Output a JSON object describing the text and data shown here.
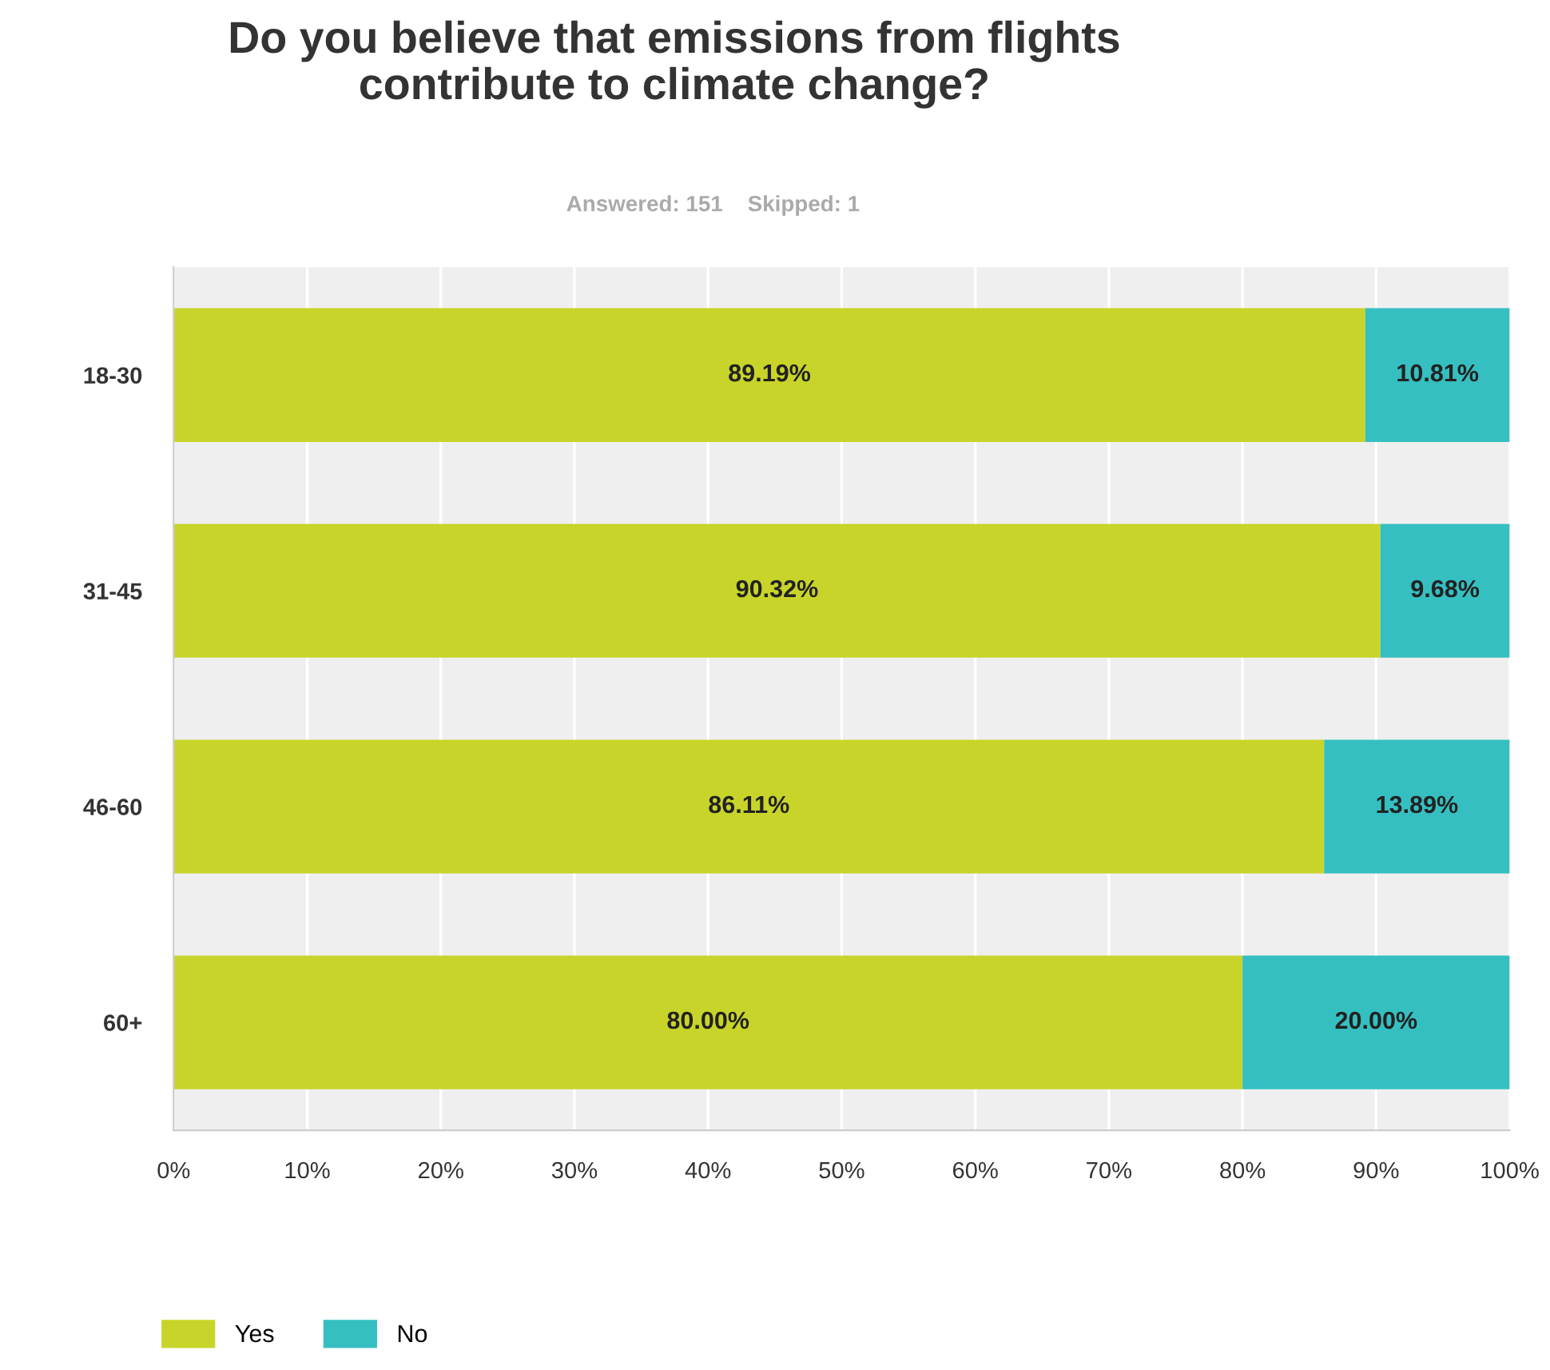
{
  "chart_data": {
    "type": "bar",
    "orientation": "horizontal",
    "stacked": true,
    "title": "Do you believe that emissions from flights\ncontribute to climate change?",
    "subtitle": "Answered: 151    Skipped: 1",
    "categories": [
      "18-30",
      "31-45",
      "46-60",
      "60+"
    ],
    "series": [
      {
        "name": "Yes",
        "color": "#c8d42a",
        "values": [
          89.19,
          90.32,
          86.11,
          80.0
        ],
        "value_labels": [
          "89.19%",
          "90.32%",
          "86.11%",
          "80.00%"
        ]
      },
      {
        "name": "No",
        "color": "#36bfc1",
        "values": [
          10.81,
          9.68,
          13.89,
          20.0
        ],
        "value_labels": [
          "10.81%",
          "9.68%",
          "13.89%",
          "20.00%"
        ]
      }
    ],
    "xlim": [
      0,
      100
    ],
    "xticks": [
      {
        "value": 0,
        "label": "0%"
      },
      {
        "value": 10,
        "label": "10%"
      },
      {
        "value": 20,
        "label": "20%"
      },
      {
        "value": 30,
        "label": "30%"
      },
      {
        "value": 40,
        "label": "40%"
      },
      {
        "value": 50,
        "label": "50%"
      },
      {
        "value": 60,
        "label": "60%"
      },
      {
        "value": 70,
        "label": "70%"
      },
      {
        "value": 80,
        "label": "80%"
      },
      {
        "value": 90,
        "label": "90%"
      },
      {
        "value": 100,
        "label": "100%"
      }
    ],
    "grid": "x",
    "legend": "bottom left"
  }
}
